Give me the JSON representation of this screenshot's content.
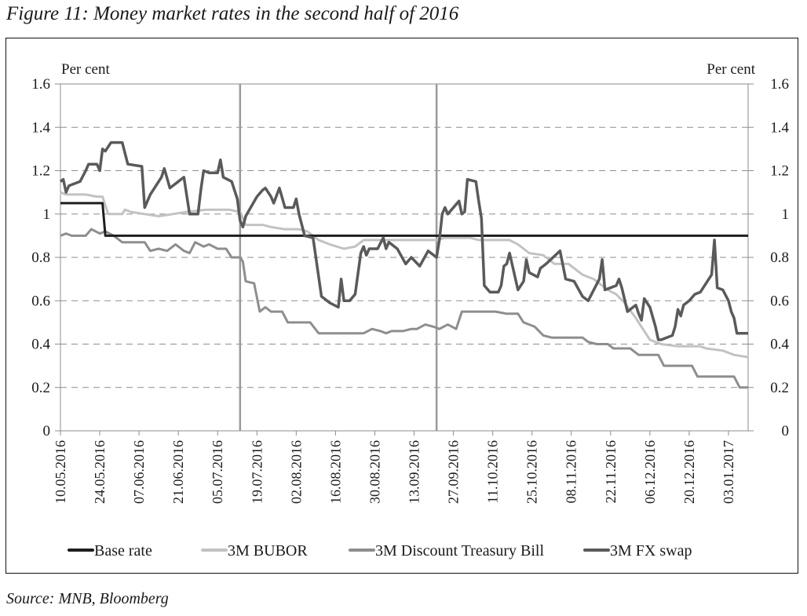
{
  "figure": {
    "title": "Figure 11: Money market rates in the second half of 2016",
    "source": "Source: MNB, Bloomberg"
  },
  "chart_data": {
    "type": "line",
    "title": "Figure 11: Money market rates in the second half of 2016",
    "ylabel_left": "Per cent",
    "ylabel_right": "Per cent",
    "ylim": [
      0,
      1.6
    ],
    "yticks": [
      "0",
      "0.2",
      "0.4",
      "0.6",
      "0.8",
      "1",
      "1.2",
      "1.4",
      "1.6"
    ],
    "ytick_values": [
      0,
      0.2,
      0.4,
      0.6,
      0.8,
      1,
      1.2,
      1.4,
      1.6
    ],
    "grid": "horizontal dashed",
    "x_tick_labels": [
      "10.05.2016",
      "24.05.2016",
      "07.06.2016",
      "21.06.2016",
      "05.07.2016",
      "19.07.2016",
      "02.08.2016",
      "16.08.2016",
      "30.08.2016",
      "13.09.2016",
      "27.09.2016",
      "11.10.2016",
      "25.10.2016",
      "08.11.2016",
      "22.11.2016",
      "06.12.2016",
      "20.12.2016",
      "03.01.2017"
    ],
    "x_range_days": [
      0,
      245
    ],
    "x_tick_days": [
      0,
      14,
      28,
      42,
      56,
      70,
      84,
      98,
      112,
      126,
      140,
      154,
      168,
      182,
      196,
      210,
      224,
      238
    ],
    "vertical_markers_days": [
      64,
      134
    ],
    "legend_position": "bottom",
    "series": [
      {
        "name": "Base rate",
        "color": "#1e1e1e",
        "points": [
          [
            0,
            1.05
          ],
          [
            15,
            1.05
          ],
          [
            16,
            0.9
          ],
          [
            245,
            0.9
          ]
        ]
      },
      {
        "name": "3M BUBOR",
        "color": "#c2c2c2",
        "points": [
          [
            0,
            1.1
          ],
          [
            2,
            1.09
          ],
          [
            9,
            1.09
          ],
          [
            13,
            1.08
          ],
          [
            15,
            1.08
          ],
          [
            16,
            1.04
          ],
          [
            17,
            1.0
          ],
          [
            22,
            1.0
          ],
          [
            23,
            1.02
          ],
          [
            25,
            1.01
          ],
          [
            30,
            1.0
          ],
          [
            35,
            0.99
          ],
          [
            40,
            1.0
          ],
          [
            45,
            1.01
          ],
          [
            52,
            1.02
          ],
          [
            60,
            1.02
          ],
          [
            64,
            1.01
          ],
          [
            66,
            0.95
          ],
          [
            72,
            0.95
          ],
          [
            75,
            0.94
          ],
          [
            80,
            0.93
          ],
          [
            85,
            0.93
          ],
          [
            88,
            0.92
          ],
          [
            92,
            0.88
          ],
          [
            96,
            0.86
          ],
          [
            101,
            0.84
          ],
          [
            105,
            0.85
          ],
          [
            108,
            0.88
          ],
          [
            115,
            0.88
          ],
          [
            125,
            0.88
          ],
          [
            134,
            0.88
          ],
          [
            137,
            0.89
          ],
          [
            146,
            0.89
          ],
          [
            149,
            0.88
          ],
          [
            160,
            0.88
          ],
          [
            163,
            0.86
          ],
          [
            167,
            0.82
          ],
          [
            172,
            0.81
          ],
          [
            176,
            0.77
          ],
          [
            181,
            0.77
          ],
          [
            186,
            0.72
          ],
          [
            190,
            0.7
          ],
          [
            195,
            0.65
          ],
          [
            198,
            0.63
          ],
          [
            201,
            0.59
          ],
          [
            205,
            0.52
          ],
          [
            208,
            0.46
          ],
          [
            210,
            0.42
          ],
          [
            214,
            0.4
          ],
          [
            220,
            0.39
          ],
          [
            228,
            0.39
          ],
          [
            230,
            0.38
          ],
          [
            236,
            0.37
          ],
          [
            240,
            0.35
          ],
          [
            245,
            0.34
          ]
        ]
      },
      {
        "name": "3M Discount Treasury Bill",
        "color": "#8e8e8e",
        "points": [
          [
            0,
            0.9
          ],
          [
            2,
            0.91
          ],
          [
            4,
            0.9
          ],
          [
            9,
            0.9
          ],
          [
            11,
            0.93
          ],
          [
            14,
            0.91
          ],
          [
            16,
            0.92
          ],
          [
            19,
            0.9
          ],
          [
            22,
            0.87
          ],
          [
            30,
            0.87
          ],
          [
            32,
            0.83
          ],
          [
            35,
            0.84
          ],
          [
            38,
            0.83
          ],
          [
            41,
            0.86
          ],
          [
            44,
            0.83
          ],
          [
            46,
            0.82
          ],
          [
            48,
            0.87
          ],
          [
            51,
            0.85
          ],
          [
            53,
            0.86
          ],
          [
            56,
            0.84
          ],
          [
            59,
            0.84
          ],
          [
            61,
            0.8
          ],
          [
            64,
            0.8
          ],
          [
            65,
            0.78
          ],
          [
            66,
            0.69
          ],
          [
            69,
            0.68
          ],
          [
            71,
            0.55
          ],
          [
            73,
            0.57
          ],
          [
            75,
            0.55
          ],
          [
            79,
            0.55
          ],
          [
            81,
            0.5
          ],
          [
            89,
            0.5
          ],
          [
            92,
            0.45
          ],
          [
            108,
            0.45
          ],
          [
            111,
            0.47
          ],
          [
            114,
            0.46
          ],
          [
            116,
            0.45
          ],
          [
            118,
            0.46
          ],
          [
            122,
            0.46
          ],
          [
            125,
            0.47
          ],
          [
            127,
            0.47
          ],
          [
            130,
            0.49
          ],
          [
            133,
            0.48
          ],
          [
            135,
            0.47
          ],
          [
            138,
            0.49
          ],
          [
            141,
            0.47
          ],
          [
            143,
            0.55
          ],
          [
            152,
            0.55
          ],
          [
            155,
            0.55
          ],
          [
            159,
            0.54
          ],
          [
            163,
            0.54
          ],
          [
            165,
            0.5
          ],
          [
            169,
            0.48
          ],
          [
            172,
            0.44
          ],
          [
            175,
            0.43
          ],
          [
            186,
            0.43
          ],
          [
            188,
            0.41
          ],
          [
            191,
            0.4
          ],
          [
            195,
            0.4
          ],
          [
            197,
            0.38
          ],
          [
            203,
            0.38
          ],
          [
            206,
            0.35
          ],
          [
            213,
            0.35
          ],
          [
            215,
            0.3
          ],
          [
            225,
            0.3
          ],
          [
            227,
            0.25
          ],
          [
            240,
            0.25
          ],
          [
            242,
            0.2
          ],
          [
            245,
            0.2
          ]
        ]
      },
      {
        "name": "3M FX swap",
        "color": "#5a5a5a",
        "points": [
          [
            0,
            1.15
          ],
          [
            1,
            1.16
          ],
          [
            2,
            1.1
          ],
          [
            3,
            1.13
          ],
          [
            7,
            1.15
          ],
          [
            9,
            1.2
          ],
          [
            10,
            1.23
          ],
          [
            13,
            1.23
          ],
          [
            14,
            1.2
          ],
          [
            15,
            1.3
          ],
          [
            16,
            1.29
          ],
          [
            18,
            1.33
          ],
          [
            22,
            1.33
          ],
          [
            24,
            1.23
          ],
          [
            29,
            1.22
          ],
          [
            30,
            1.03
          ],
          [
            32,
            1.09
          ],
          [
            36,
            1.17
          ],
          [
            37,
            1.21
          ],
          [
            39,
            1.12
          ],
          [
            42,
            1.15
          ],
          [
            44,
            1.17
          ],
          [
            46,
            1.0
          ],
          [
            49,
            1.0
          ],
          [
            50,
            1.11
          ],
          [
            51,
            1.2
          ],
          [
            53,
            1.19
          ],
          [
            56,
            1.19
          ],
          [
            57,
            1.25
          ],
          [
            58,
            1.17
          ],
          [
            61,
            1.15
          ],
          [
            63,
            1.07
          ],
          [
            64,
            0.97
          ],
          [
            65,
            0.94
          ],
          [
            66,
            0.99
          ],
          [
            70,
            1.08
          ],
          [
            72,
            1.11
          ],
          [
            73,
            1.12
          ],
          [
            75,
            1.08
          ],
          [
            76,
            1.05
          ],
          [
            78,
            1.12
          ],
          [
            80,
            1.03
          ],
          [
            83,
            1.03
          ],
          [
            84,
            1.07
          ],
          [
            85,
            1.0
          ],
          [
            87,
            0.9
          ],
          [
            90,
            0.89
          ],
          [
            93,
            0.62
          ],
          [
            96,
            0.59
          ],
          [
            99,
            0.57
          ],
          [
            100,
            0.7
          ],
          [
            101,
            0.6
          ],
          [
            103,
            0.6
          ],
          [
            105,
            0.63
          ],
          [
            107,
            0.82
          ],
          [
            108,
            0.85
          ],
          [
            109,
            0.81
          ],
          [
            110,
            0.84
          ],
          [
            113,
            0.84
          ],
          [
            115,
            0.89
          ],
          [
            116,
            0.84
          ],
          [
            117,
            0.87
          ],
          [
            120,
            0.84
          ],
          [
            123,
            0.77
          ],
          [
            125,
            0.8
          ],
          [
            128,
            0.76
          ],
          [
            131,
            0.83
          ],
          [
            134,
            0.8
          ],
          [
            135,
            0.88
          ],
          [
            136,
            1.0
          ],
          [
            137,
            1.03
          ],
          [
            138,
            1.0
          ],
          [
            142,
            1.06
          ],
          [
            143,
            1.0
          ],
          [
            144,
            1.01
          ],
          [
            145,
            1.16
          ],
          [
            148,
            1.15
          ],
          [
            149,
            1.06
          ],
          [
            150,
            0.98
          ],
          [
            151,
            0.67
          ],
          [
            153,
            0.64
          ],
          [
            156,
            0.64
          ],
          [
            157,
            0.67
          ],
          [
            158,
            0.76
          ],
          [
            159,
            0.77
          ],
          [
            160,
            0.82
          ],
          [
            163,
            0.65
          ],
          [
            165,
            0.69
          ],
          [
            166,
            0.79
          ],
          [
            167,
            0.73
          ],
          [
            170,
            0.71
          ],
          [
            171,
            0.75
          ],
          [
            172,
            0.76
          ],
          [
            173,
            0.77
          ],
          [
            178,
            0.83
          ],
          [
            180,
            0.7
          ],
          [
            183,
            0.69
          ],
          [
            186,
            0.62
          ],
          [
            188,
            0.6
          ],
          [
            192,
            0.7
          ],
          [
            193,
            0.79
          ],
          [
            194,
            0.65
          ],
          [
            196,
            0.66
          ],
          [
            198,
            0.67
          ],
          [
            199,
            0.7
          ],
          [
            200,
            0.66
          ],
          [
            202,
            0.55
          ],
          [
            204,
            0.57
          ],
          [
            205,
            0.58
          ],
          [
            206,
            0.54
          ],
          [
            207,
            0.51
          ],
          [
            208,
            0.61
          ],
          [
            210,
            0.57
          ],
          [
            212,
            0.48
          ],
          [
            213,
            0.42
          ],
          [
            214,
            0.42
          ],
          [
            216,
            0.43
          ],
          [
            218,
            0.44
          ],
          [
            219,
            0.48
          ],
          [
            220,
            0.56
          ],
          [
            221,
            0.53
          ],
          [
            222,
            0.58
          ],
          [
            224,
            0.6
          ],
          [
            226,
            0.63
          ],
          [
            228,
            0.64
          ],
          [
            230,
            0.68
          ],
          [
            232,
            0.72
          ],
          [
            233,
            0.88
          ],
          [
            234,
            0.66
          ],
          [
            236,
            0.65
          ],
          [
            238,
            0.6
          ],
          [
            239,
            0.55
          ],
          [
            240,
            0.52
          ],
          [
            241,
            0.45
          ],
          [
            244,
            0.45
          ],
          [
            245,
            0.45
          ]
        ]
      }
    ]
  }
}
